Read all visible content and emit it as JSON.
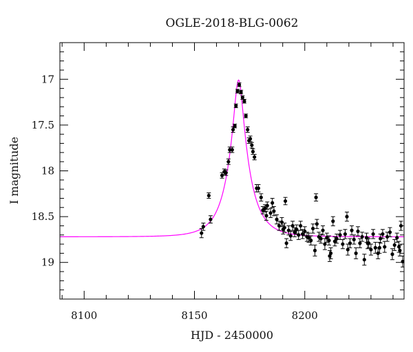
{
  "chart_data": {
    "type": "scatter",
    "title": "OGLE-2018-BLG-0062",
    "xlabel": "HJD - 2450000",
    "ylabel": "I magnitude",
    "xlim": [
      8089,
      8245
    ],
    "ylim": [
      19.4,
      16.6
    ],
    "y_inverted": true,
    "x_ticks": [
      8100,
      8150,
      8200
    ],
    "y_ticks": [
      17,
      17.5,
      18,
      18.5,
      19
    ],
    "grid": false,
    "colors": {
      "model": "#ff00ff",
      "points": "#000000"
    },
    "series": [
      {
        "kind": "points",
        "x": [
          8153.2,
          8154,
          8156.5,
          8157.3,
          8162.5,
          8163.5,
          8164.3,
          8165.4,
          8166,
          8167.1,
          8167.5,
          8168.3,
          8168.8,
          8169.5,
          8170.3,
          8171.1,
          8171.8,
          8172.6,
          8173.3,
          8174.1,
          8174.7,
          8175.3,
          8176,
          8176.5,
          8177.2,
          8178.2,
          8179,
          8180.2,
          8181,
          8182,
          8183,
          8184.5,
          8186,
          8187.3,
          8188.4,
          8189.6,
          8190.8,
          8191.7,
          8192.7,
          8193.6,
          8194.5,
          8195.4,
          8196.3,
          8197.2,
          8198.1,
          8199,
          8200,
          8201,
          8201.8,
          8202.8,
          8203.7,
          8204.6,
          8205.5,
          8206.4,
          8207.3,
          8208.2,
          8209.1,
          8210,
          8211,
          8211.8,
          8212.8,
          8213.6,
          8214.5,
          8216,
          8217.2,
          8218.3,
          8219.5,
          8220.5,
          8221.3,
          8222.3,
          8223.2,
          8224.1,
          8225,
          8226,
          8227,
          8228,
          8229,
          8230,
          8231,
          8232,
          8233.2,
          8234.3,
          8235.3,
          8236.2,
          8237.4,
          8238.6,
          8239.7,
          8240.7,
          8241.8,
          8242.7,
          8243.6,
          8244.4,
          8182.6,
          8185.3,
          8191.2,
          8205.1,
          8211.3,
          8219.1,
          8228.5,
          8233.9,
          8190.2,
          8243.1
        ],
        "y": [
          18.68,
          18.61,
          18.27,
          18.53,
          18.05,
          18.01,
          18.02,
          17.9,
          17.77,
          17.77,
          17.55,
          17.51,
          17.29,
          17.13,
          17.06,
          17.14,
          17.2,
          17.24,
          17.4,
          17.55,
          17.67,
          17.65,
          17.72,
          17.79,
          17.85,
          18.19,
          18.19,
          18.29,
          18.43,
          18.41,
          18.38,
          18.46,
          18.44,
          18.53,
          18.6,
          18.56,
          18.62,
          18.79,
          18.65,
          18.71,
          18.6,
          18.67,
          18.64,
          18.7,
          18.6,
          18.69,
          18.66,
          18.72,
          18.73,
          18.76,
          18.63,
          18.87,
          18.58,
          18.72,
          18.74,
          18.65,
          18.8,
          18.73,
          18.76,
          18.9,
          18.55,
          18.77,
          18.74,
          18.7,
          18.8,
          18.69,
          18.86,
          18.79,
          18.65,
          18.75,
          18.9,
          18.66,
          18.79,
          18.72,
          18.97,
          18.73,
          18.79,
          18.86,
          18.69,
          18.84,
          18.9,
          18.74,
          18.69,
          18.83,
          18.72,
          18.67,
          18.91,
          18.81,
          18.73,
          18.83,
          18.6,
          18.99,
          18.49,
          18.35,
          18.33,
          18.29,
          18.93,
          18.5,
          18.79,
          18.84,
          18.64,
          18.87
        ],
        "err": [
          0.05,
          0.04,
          0.03,
          0.04,
          0.03,
          0.03,
          0.03,
          0.03,
          0.03,
          0.03,
          0.03,
          0.02,
          0.02,
          0.02,
          0.02,
          0.02,
          0.02,
          0.02,
          0.02,
          0.03,
          0.03,
          0.03,
          0.03,
          0.03,
          0.03,
          0.04,
          0.04,
          0.04,
          0.04,
          0.04,
          0.04,
          0.05,
          0.05,
          0.05,
          0.05,
          0.05,
          0.05,
          0.05,
          0.05,
          0.05,
          0.05,
          0.05,
          0.05,
          0.05,
          0.05,
          0.05,
          0.05,
          0.05,
          0.05,
          0.05,
          0.05,
          0.06,
          0.05,
          0.05,
          0.05,
          0.05,
          0.06,
          0.05,
          0.05,
          0.06,
          0.05,
          0.05,
          0.05,
          0.05,
          0.05,
          0.05,
          0.06,
          0.05,
          0.05,
          0.05,
          0.06,
          0.05,
          0.05,
          0.05,
          0.06,
          0.05,
          0.05,
          0.06,
          0.05,
          0.06,
          0.06,
          0.05,
          0.05,
          0.06,
          0.05,
          0.05,
          0.06,
          0.06,
          0.05,
          0.06,
          0.05,
          0.06,
          0.05,
          0.05,
          0.04,
          0.04,
          0.06,
          0.05,
          0.06,
          0.06,
          0.05,
          0.06
        ]
      },
      {
        "kind": "model_curve",
        "model": {
          "baseline": 18.72,
          "t0": 8170.0,
          "u0": 0.21,
          "tE": 9.5
        }
      }
    ]
  }
}
